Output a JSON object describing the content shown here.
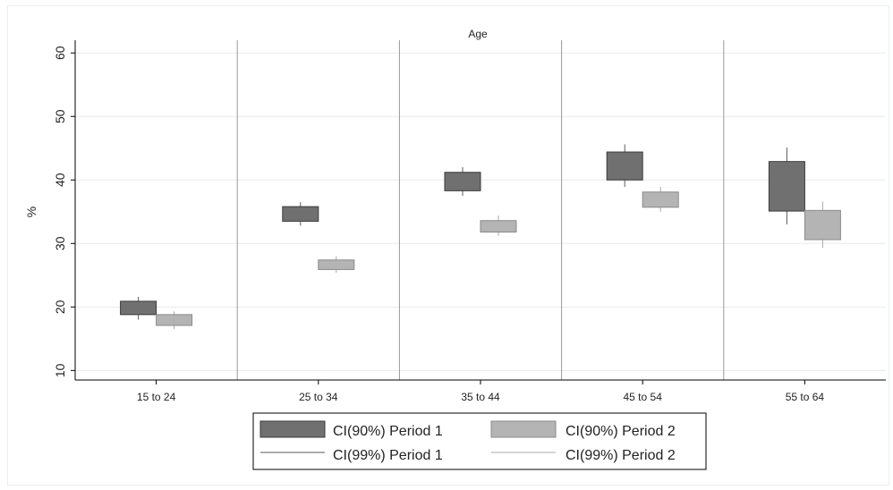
{
  "chart_data": {
    "type": "candlestick",
    "title": "Age",
    "ylabel": "%",
    "ylim": [
      8.5,
      62
    ],
    "yticks": [
      10,
      20,
      30,
      40,
      50,
      60
    ],
    "grid": true,
    "legend_placement": "bottom",
    "categories": [
      "15 to 24",
      "25 to 34",
      "35 to 44",
      "45 to 54",
      "55 to 64"
    ],
    "series": [
      {
        "name": "CI(90%) Period 1",
        "ci90_low": [
          18.8,
          33.5,
          38.3,
          40.0,
          35.1
        ],
        "ci90_high": [
          20.9,
          35.8,
          41.2,
          44.4,
          42.9
        ],
        "color": "#707070"
      },
      {
        "name": "CI(90%) Period 2",
        "ci90_low": [
          17.1,
          25.9,
          31.8,
          35.7,
          30.6
        ],
        "ci90_high": [
          18.8,
          27.4,
          33.6,
          38.1,
          35.2
        ],
        "color": "#b4b4b4"
      }
    ],
    "ci99_series": [
      {
        "name": "CI(99%) Period 1",
        "low": [
          18.0,
          32.8,
          37.5,
          38.9,
          33.0
        ],
        "high": [
          21.6,
          36.5,
          42.0,
          45.6,
          45.1
        ],
        "color": "#5a5a5a"
      },
      {
        "name": "CI(99%) Period 2",
        "low": [
          16.5,
          25.4,
          31.2,
          35.0,
          29.3
        ],
        "high": [
          19.3,
          28.0,
          34.4,
          38.9,
          36.6
        ],
        "color": "#a8a8a8"
      }
    ],
    "legend": [
      {
        "label": "CI(90%) Period 1",
        "kind": "box",
        "color": "#707070"
      },
      {
        "label": "CI(90%) Period 2",
        "kind": "box",
        "color": "#b4b4b4"
      },
      {
        "label": "CI(99%) Period 1",
        "kind": "line",
        "color": "#5a5a5a"
      },
      {
        "label": "CI(99%) Period 2",
        "kind": "line",
        "color": "#a8a8a8"
      }
    ]
  }
}
